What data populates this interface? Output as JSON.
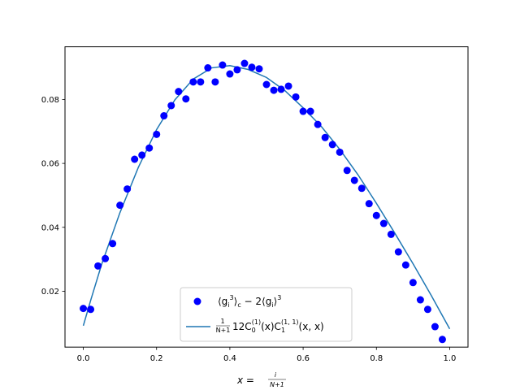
{
  "chart_data": {
    "type": "scatter",
    "xlim": [
      -0.05,
      1.05
    ],
    "ylim": [
      0.0025,
      0.0965
    ],
    "xticks": [
      0.0,
      0.2,
      0.4,
      0.6,
      0.8,
      1.0
    ],
    "xtick_labels": [
      "0.0",
      "0.2",
      "0.4",
      "0.6",
      "0.8",
      "1.0"
    ],
    "yticks": [
      0.02,
      0.04,
      0.06,
      0.08
    ],
    "ytick_labels": [
      "0.02",
      "0.04",
      "0.06",
      "0.08"
    ],
    "grid": false,
    "legend_position": "lower center",
    "series": [
      {
        "name": "⟨g_i^3⟩_c − 2⟨g_i⟩^3",
        "kind": "scatter",
        "color": "#0000ff",
        "points": [
          [
            0.0,
            0.0146
          ],
          [
            0.02,
            0.0143
          ],
          [
            0.04,
            0.0279
          ],
          [
            0.06,
            0.0302
          ],
          [
            0.08,
            0.0349
          ],
          [
            0.1,
            0.0469
          ],
          [
            0.12,
            0.052
          ],
          [
            0.14,
            0.0613
          ],
          [
            0.16,
            0.0626
          ],
          [
            0.18,
            0.0648
          ],
          [
            0.2,
            0.0691
          ],
          [
            0.22,
            0.0749
          ],
          [
            0.24,
            0.0781
          ],
          [
            0.26,
            0.0825
          ],
          [
            0.28,
            0.0802
          ],
          [
            0.3,
            0.0855
          ],
          [
            0.32,
            0.0855
          ],
          [
            0.34,
            0.0899
          ],
          [
            0.36,
            0.0855
          ],
          [
            0.38,
            0.0908
          ],
          [
            0.4,
            0.088
          ],
          [
            0.42,
            0.0893
          ],
          [
            0.44,
            0.0913
          ],
          [
            0.46,
            0.0901
          ],
          [
            0.48,
            0.0896
          ],
          [
            0.5,
            0.0847
          ],
          [
            0.52,
            0.0829
          ],
          [
            0.54,
            0.0832
          ],
          [
            0.56,
            0.0842
          ],
          [
            0.58,
            0.0808
          ],
          [
            0.6,
            0.0763
          ],
          [
            0.62,
            0.0763
          ],
          [
            0.64,
            0.0722
          ],
          [
            0.66,
            0.0681
          ],
          [
            0.68,
            0.0659
          ],
          [
            0.7,
            0.0635
          ],
          [
            0.72,
            0.0578
          ],
          [
            0.74,
            0.0547
          ],
          [
            0.76,
            0.0522
          ],
          [
            0.78,
            0.0474
          ],
          [
            0.8,
            0.0437
          ],
          [
            0.82,
            0.0412
          ],
          [
            0.84,
            0.0378
          ],
          [
            0.86,
            0.0323
          ],
          [
            0.88,
            0.0282
          ],
          [
            0.9,
            0.0227
          ],
          [
            0.92,
            0.0173
          ],
          [
            0.94,
            0.0143
          ],
          [
            0.96,
            0.0089
          ],
          [
            0.98,
            0.0049
          ]
        ]
      },
      {
        "name": "1/(N+1) 12 C_0^(1)(x) C_1^(1,1)(x,x)",
        "kind": "line",
        "color": "#1f77b4",
        "x": [
          0.0,
          0.02,
          0.05,
          0.1,
          0.15,
          0.2,
          0.25,
          0.3,
          0.35,
          0.4,
          0.45,
          0.5,
          0.55,
          0.6,
          0.65,
          0.7,
          0.75,
          0.8,
          0.85,
          0.9,
          0.95,
          1.0
        ],
        "y": [
          0.0092,
          0.0171,
          0.0284,
          0.0446,
          0.0587,
          0.0706,
          0.0799,
          0.0864,
          0.0899,
          0.0906,
          0.0894,
          0.0869,
          0.0828,
          0.0774,
          0.0715,
          0.0644,
          0.0564,
          0.0475,
          0.0382,
          0.0286,
          0.0186,
          0.0082
        ]
      }
    ],
    "legend": [
      {
        "label_main": "⟨g",
        "sub": "i",
        "sup": "3",
        "rest": "⟩",
        "sub2": "c",
        "tail": " − 2⟨g",
        "sub3": "i",
        "tail2": "⟩",
        "sup2": "3"
      },
      {
        "frac_num": "1",
        "frac_den": "N+1",
        "body": "12C",
        "sub": "0",
        "sup": "(1)",
        "mid": "(x)C",
        "sub2": "1",
        "sup2": "(1, 1)",
        "end": "(x, x)"
      }
    ],
    "xlabel": {
      "lhs": "x = ",
      "num": "i",
      "den": "N+1"
    }
  }
}
